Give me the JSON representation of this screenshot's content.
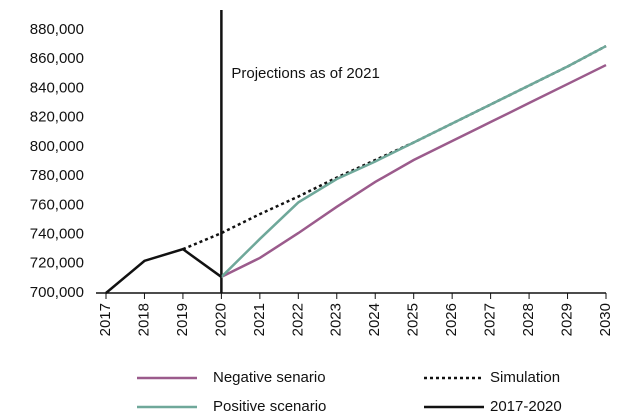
{
  "chart_data": {
    "type": "line",
    "categories": [
      "2017",
      "2018",
      "2019",
      "2020",
      "2021",
      "2022",
      "2023",
      "2024",
      "2025",
      "2026",
      "2027",
      "2028",
      "2029",
      "2030"
    ],
    "annotation": {
      "text": "Projections as of 2021",
      "at": "2020"
    },
    "ylim": [
      700000,
      880000
    ],
    "yticks": [
      {
        "value": 700000,
        "label": "700,000"
      },
      {
        "value": 720000,
        "label": "720,000"
      },
      {
        "value": 740000,
        "label": "740,000"
      },
      {
        "value": 760000,
        "label": "760,000"
      },
      {
        "value": 780000,
        "label": "780,000"
      },
      {
        "value": 800000,
        "label": "800,000"
      },
      {
        "value": 820000,
        "label": "820,000"
      },
      {
        "value": 840000,
        "label": "840,000"
      },
      {
        "value": 860000,
        "label": "860,000"
      },
      {
        "value": 880000,
        "label": "880,000"
      }
    ],
    "series": [
      {
        "name": "Negative senario",
        "color": "#9b5b8c",
        "dash": "solid",
        "values": [
          null,
          null,
          null,
          711000,
          724000,
          741000,
          759000,
          776000,
          791000,
          804000,
          817000,
          830000,
          843000,
          856000
        ]
      },
      {
        "name": "Simulation",
        "color": "#111111",
        "dash": "dotted",
        "values": [
          null,
          null,
          730000,
          741000,
          754000,
          766000,
          779000,
          791000,
          803000,
          816000,
          829000,
          842000,
          855000,
          869000
        ]
      },
      {
        "name": "Positive scenario",
        "color": "#6fa89a",
        "dash": "solid",
        "values": [
          null,
          null,
          null,
          711000,
          737000,
          762000,
          778000,
          790000,
          803000,
          816000,
          829000,
          842000,
          855000,
          869000
        ]
      },
      {
        "name": "2017-2020",
        "color": "#111111",
        "dash": "solid",
        "values": [
          700000,
          722000,
          730000,
          711000,
          null,
          null,
          null,
          null,
          null,
          null,
          null,
          null,
          null,
          null
        ]
      }
    ]
  }
}
